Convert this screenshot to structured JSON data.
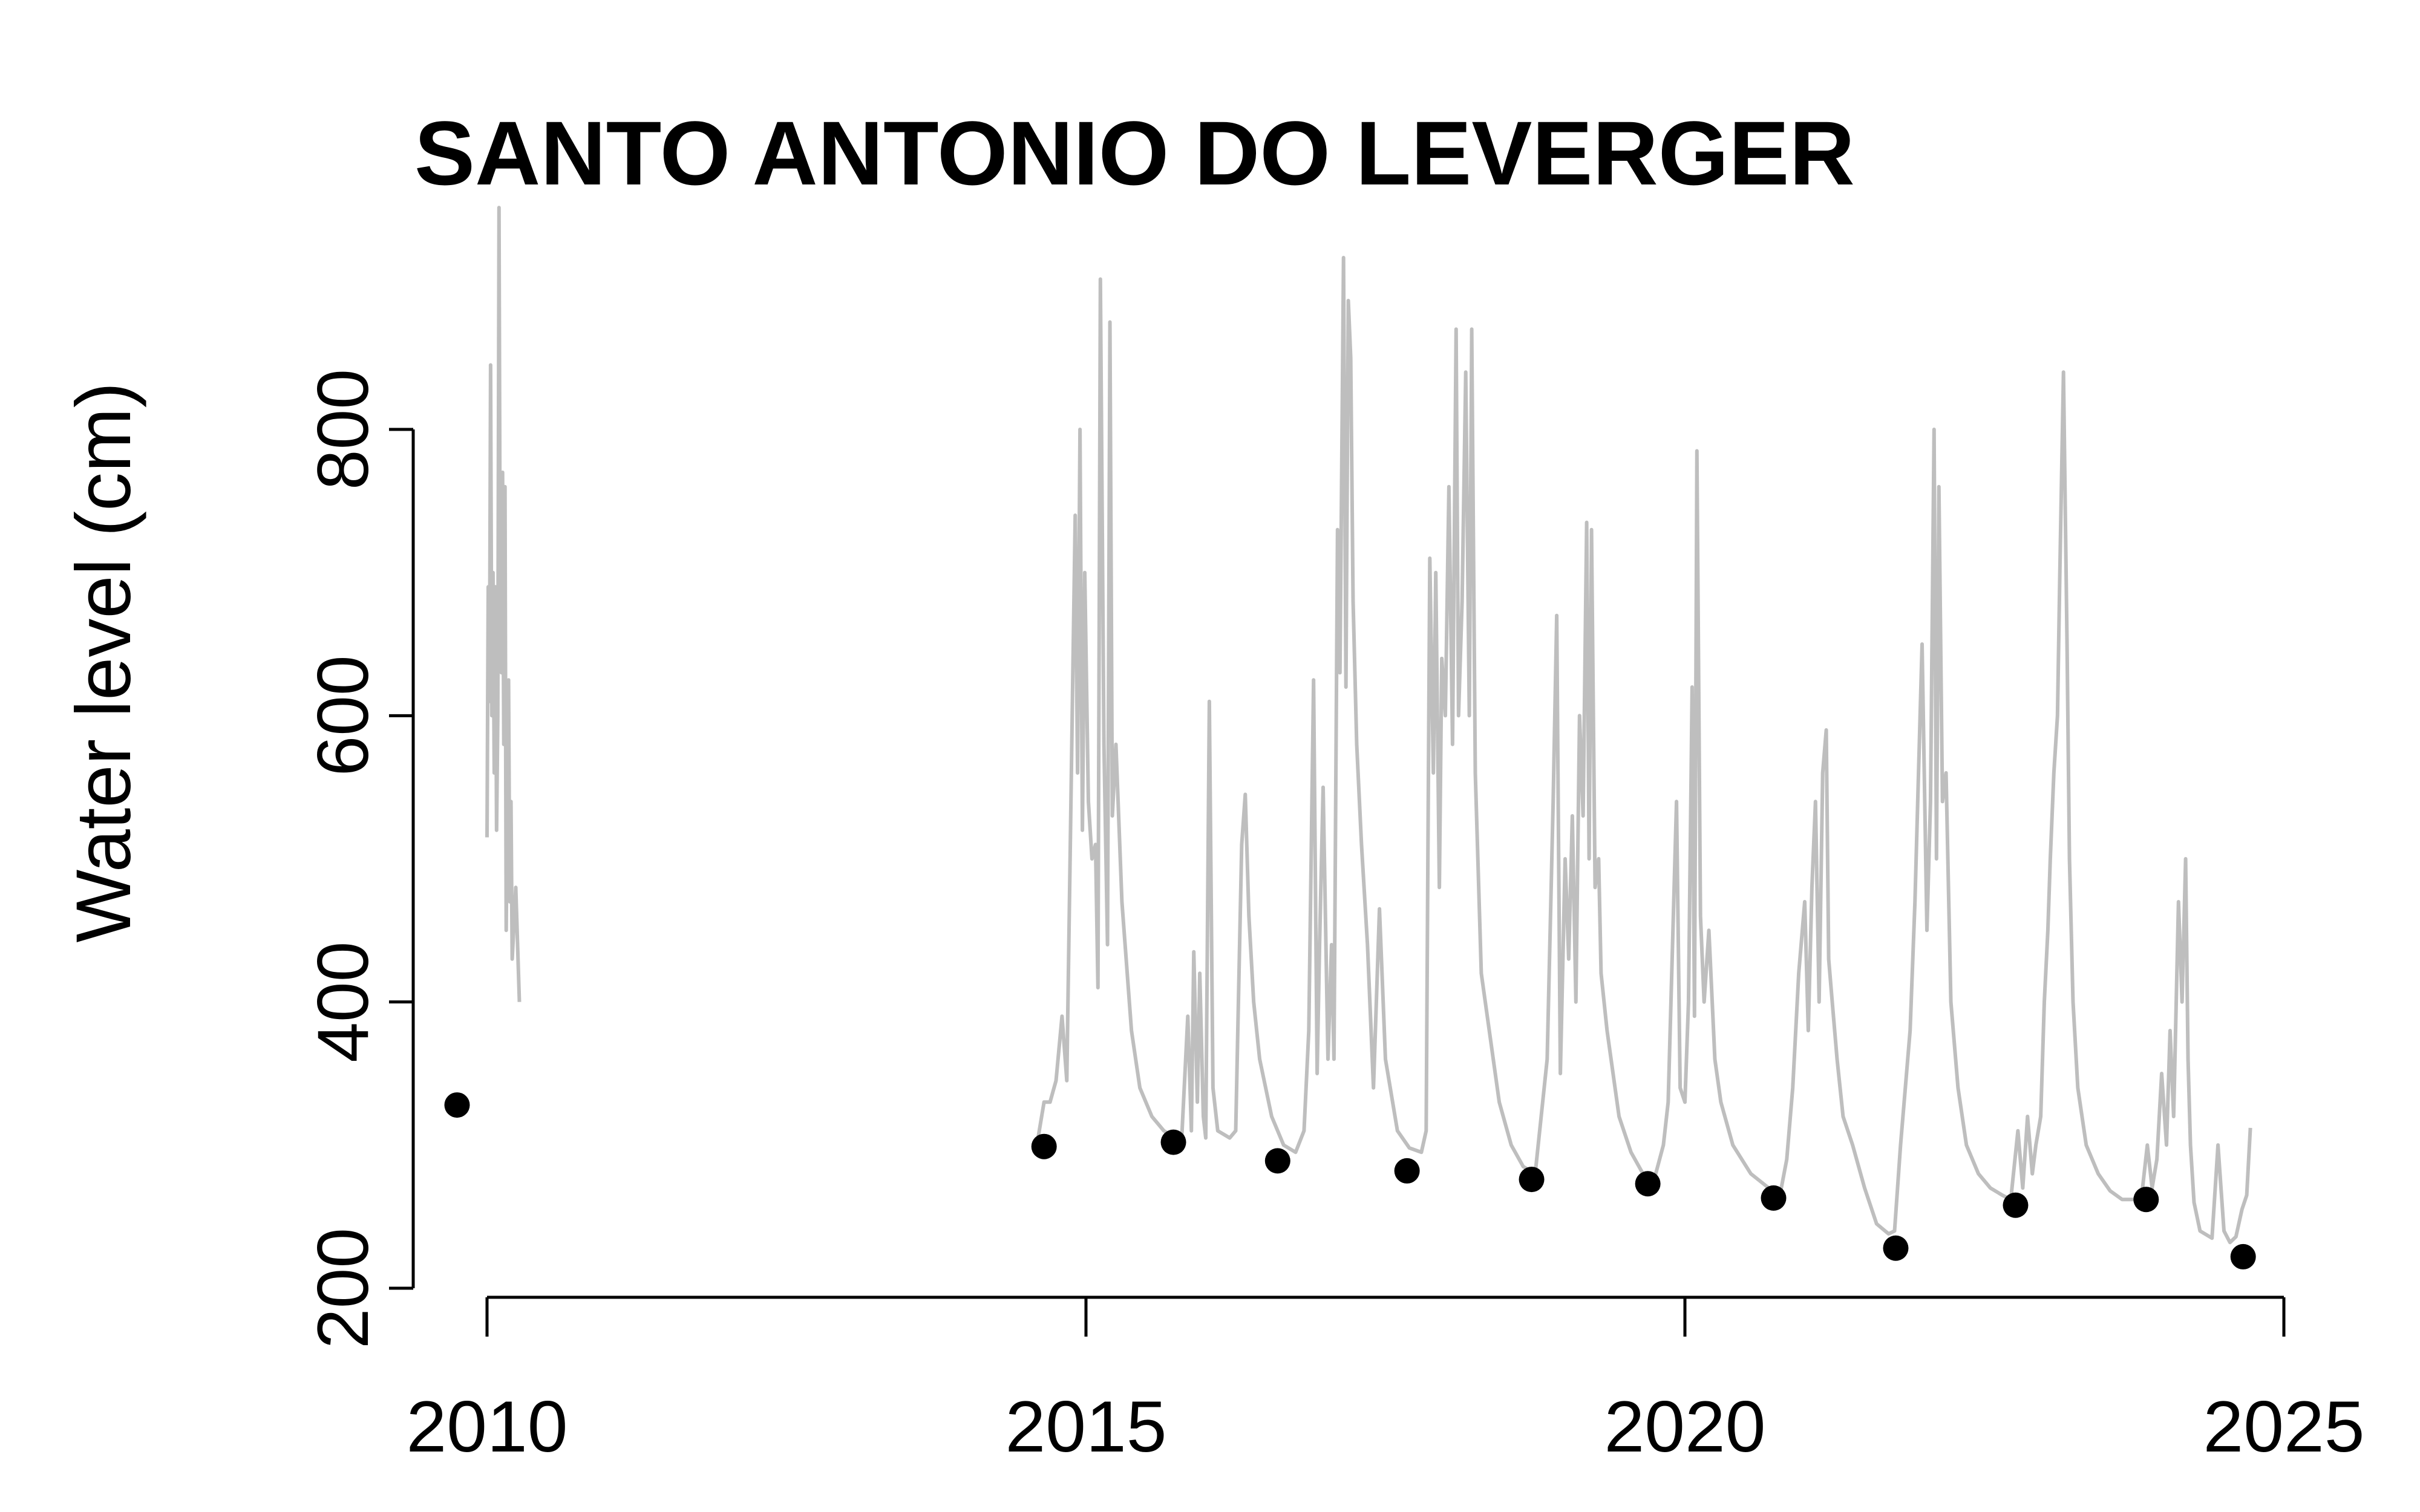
{
  "chart_data": {
    "type": "line",
    "title": "SANTO ANTONIO DO LEVERGER",
    "xlabel": "",
    "ylabel": "Water level (cm)",
    "xlim": [
      2010,
      2025
    ],
    "ylim": [
      200,
      800
    ],
    "x_ticks": [
      "2010",
      "2015",
      "2020",
      "2025"
    ],
    "y_ticks": [
      "200",
      "400",
      "600",
      "800"
    ],
    "grid": false,
    "colors": {
      "line": "#bebebe",
      "points": "#000000",
      "axis": "#000000"
    },
    "series": [
      {
        "type": "line",
        "segments": [
          [
            [
              2010.0,
              515
            ],
            [
              2010.01,
              690
            ],
            [
              2010.02,
              610
            ],
            [
              2010.03,
              845
            ],
            [
              2010.04,
              600
            ],
            [
              2010.05,
              700
            ],
            [
              2010.06,
              560
            ],
            [
              2010.07,
              690
            ],
            [
              2010.08,
              520
            ],
            [
              2010.09,
              600
            ],
            [
              2010.1,
              955
            ],
            [
              2010.11,
              680
            ],
            [
              2010.12,
              630
            ],
            [
              2010.13,
              770
            ],
            [
              2010.14,
              580
            ],
            [
              2010.15,
              760
            ],
            [
              2010.16,
              450
            ],
            [
              2010.17,
              560
            ],
            [
              2010.18,
              625
            ],
            [
              2010.19,
              470
            ],
            [
              2010.2,
              540
            ],
            [
              2010.21,
              430
            ],
            [
              2010.24,
              480
            ],
            [
              2010.27,
              400
            ]
          ],
          [
            [
              2014.6,
              305
            ],
            [
              2014.65,
              330
            ],
            [
              2014.7,
              330
            ],
            [
              2014.75,
              345
            ],
            [
              2014.8,
              390
            ],
            [
              2014.84,
              345
            ],
            [
              2014.88,
              570
            ],
            [
              2014.91,
              740
            ],
            [
              2014.93,
              560
            ],
            [
              2014.95,
              800
            ],
            [
              2014.97,
              520
            ],
            [
              2014.99,
              700
            ],
            [
              2015.02,
              540
            ],
            [
              2015.05,
              500
            ],
            [
              2015.08,
              510
            ],
            [
              2015.1,
              410
            ],
            [
              2015.12,
              905
            ],
            [
              2015.15,
              580
            ],
            [
              2015.18,
              440
            ],
            [
              2015.2,
              875
            ],
            [
              2015.22,
              530
            ],
            [
              2015.25,
              580
            ],
            [
              2015.3,
              470
            ],
            [
              2015.38,
              380
            ],
            [
              2015.45,
              340
            ],
            [
              2015.55,
              320
            ],
            [
              2015.65,
              310
            ],
            [
              2015.75,
              305
            ],
            [
              2015.8,
              306
            ],
            [
              2015.85,
              390
            ],
            [
              2015.88,
              310
            ],
            [
              2015.9,
              435
            ],
            [
              2015.93,
              330
            ],
            [
              2015.95,
              420
            ],
            [
              2015.98,
              320
            ],
            [
              2016.0,
              305
            ],
            [
              2016.03,
              610
            ],
            [
              2016.06,
              340
            ],
            [
              2016.1,
              310
            ],
            [
              2016.2,
              305
            ],
            [
              2016.25,
              310
            ],
            [
              2016.3,
              510
            ],
            [
              2016.33,
              545
            ],
            [
              2016.36,
              460
            ],
            [
              2016.4,
              400
            ],
            [
              2016.45,
              360
            ],
            [
              2016.55,
              320
            ],
            [
              2016.65,
              300
            ],
            [
              2016.75,
              295
            ],
            [
              2016.82,
              310
            ],
            [
              2016.86,
              380
            ],
            [
              2016.9,
              625
            ],
            [
              2016.93,
              350
            ],
            [
              2016.95,
              440
            ],
            [
              2016.98,
              550
            ],
            [
              2017.02,
              360
            ],
            [
              2017.05,
              440
            ],
            [
              2017.07,
              360
            ],
            [
              2017.1,
              730
            ],
            [
              2017.12,
              630
            ],
            [
              2017.15,
              920
            ],
            [
              2017.17,
              620
            ],
            [
              2017.19,
              890
            ],
            [
              2017.21,
              850
            ],
            [
              2017.23,
              680
            ],
            [
              2017.26,
              580
            ],
            [
              2017.3,
              510
            ],
            [
              2017.35,
              440
            ],
            [
              2017.4,
              340
            ],
            [
              2017.45,
              465
            ],
            [
              2017.5,
              360
            ],
            [
              2017.6,
              310
            ],
            [
              2017.7,
              298
            ],
            [
              2017.8,
              295
            ],
            [
              2017.84,
              310
            ],
            [
              2017.87,
              710
            ],
            [
              2017.9,
              560
            ],
            [
              2017.92,
              700
            ],
            [
              2017.95,
              480
            ],
            [
              2017.97,
              640
            ],
            [
              2018.0,
              600
            ],
            [
              2018.03,
              760
            ],
            [
              2018.06,
              580
            ],
            [
              2018.09,
              870
            ],
            [
              2018.11,
              600
            ],
            [
              2018.14,
              680
            ],
            [
              2018.17,
              840
            ],
            [
              2018.2,
              600
            ],
            [
              2018.22,
              870
            ],
            [
              2018.25,
              560
            ],
            [
              2018.3,
              420
            ],
            [
              2018.35,
              390
            ],
            [
              2018.45,
              330
            ],
            [
              2018.55,
              300
            ],
            [
              2018.65,
              285
            ],
            [
              2018.75,
              280
            ],
            [
              2018.8,
              320
            ],
            [
              2018.85,
              360
            ],
            [
              2018.9,
              540
            ],
            [
              2018.93,
              670
            ],
            [
              2018.96,
              350
            ],
            [
              2019.0,
              500
            ],
            [
              2019.03,
              430
            ],
            [
              2019.06,
              530
            ],
            [
              2019.09,
              400
            ],
            [
              2019.12,
              600
            ],
            [
              2019.15,
              530
            ],
            [
              2019.18,
              735
            ],
            [
              2019.2,
              500
            ],
            [
              2019.22,
              730
            ],
            [
              2019.25,
              480
            ],
            [
              2019.28,
              500
            ],
            [
              2019.3,
              420
            ],
            [
              2019.35,
              380
            ],
            [
              2019.45,
              320
            ],
            [
              2019.55,
              295
            ],
            [
              2019.65,
              280
            ],
            [
              2019.75,
              278
            ],
            [
              2019.82,
              300
            ],
            [
              2019.86,
              330
            ],
            [
              2019.9,
              450
            ],
            [
              2019.93,
              540
            ],
            [
              2019.96,
              340
            ],
            [
              2020.0,
              330
            ],
            [
              2020.03,
              400
            ],
            [
              2020.06,
              620
            ],
            [
              2020.08,
              390
            ],
            [
              2020.1,
              785
            ],
            [
              2020.13,
              460
            ],
            [
              2020.16,
              400
            ],
            [
              2020.2,
              450
            ],
            [
              2020.25,
              360
            ],
            [
              2020.3,
              330
            ],
            [
              2020.4,
              300
            ],
            [
              2020.55,
              280
            ],
            [
              2020.7,
              270
            ],
            [
              2020.8,
              268
            ],
            [
              2020.85,
              290
            ],
            [
              2020.9,
              340
            ],
            [
              2020.95,
              420
            ],
            [
              2021.0,
              470
            ],
            [
              2021.03,
              380
            ],
            [
              2021.06,
              480
            ],
            [
              2021.09,
              540
            ],
            [
              2021.12,
              400
            ],
            [
              2021.15,
              560
            ],
            [
              2021.18,
              590
            ],
            [
              2021.2,
              430
            ],
            [
              2021.23,
              400
            ],
            [
              2021.27,
              360
            ],
            [
              2021.32,
              320
            ],
            [
              2021.4,
              300
            ],
            [
              2021.5,
              270
            ],
            [
              2021.6,
              245
            ],
            [
              2021.7,
              238
            ],
            [
              2021.75,
              240
            ],
            [
              2021.8,
              300
            ],
            [
              2021.84,
              340
            ],
            [
              2021.88,
              380
            ],
            [
              2021.92,
              470
            ],
            [
              2021.95,
              560
            ],
            [
              2021.98,
              650
            ],
            [
              2022.02,
              450
            ],
            [
              2022.05,
              540
            ],
            [
              2022.08,
              800
            ],
            [
              2022.1,
              500
            ],
            [
              2022.12,
              760
            ],
            [
              2022.15,
              540
            ],
            [
              2022.18,
              560
            ],
            [
              2022.22,
              400
            ],
            [
              2022.28,
              340
            ],
            [
              2022.35,
              300
            ],
            [
              2022.45,
              280
            ],
            [
              2022.55,
              270
            ],
            [
              2022.65,
              265
            ],
            [
              2022.72,
              262
            ],
            [
              2022.78,
              310
            ],
            [
              2022.82,
              270
            ],
            [
              2022.86,
              320
            ],
            [
              2022.9,
              280
            ],
            [
              2022.93,
              300
            ],
            [
              2022.97,
              320
            ],
            [
              2023.0,
              400
            ],
            [
              2023.03,
              450
            ],
            [
              2023.05,
              500
            ],
            [
              2023.08,
              560
            ],
            [
              2023.11,
              600
            ],
            [
              2023.13,
              700
            ],
            [
              2023.16,
              840
            ],
            [
              2023.19,
              650
            ],
            [
              2023.21,
              500
            ],
            [
              2023.24,
              400
            ],
            [
              2023.28,
              340
            ],
            [
              2023.35,
              300
            ],
            [
              2023.45,
              280
            ],
            [
              2023.55,
              268
            ],
            [
              2023.65,
              262
            ],
            [
              2023.75,
              262
            ],
            [
              2023.82,
              270
            ],
            [
              2023.86,
              300
            ],
            [
              2023.9,
              270
            ],
            [
              2023.94,
              290
            ],
            [
              2023.98,
              350
            ],
            [
              2024.02,
              300
            ],
            [
              2024.05,
              380
            ],
            [
              2024.08,
              320
            ],
            [
              2024.12,
              470
            ],
            [
              2024.15,
              400
            ],
            [
              2024.18,
              500
            ],
            [
              2024.2,
              360
            ],
            [
              2024.22,
              300
            ],
            [
              2024.25,
              260
            ],
            [
              2024.3,
              240
            ],
            [
              2024.4,
              235
            ],
            [
              2024.45,
              300
            ],
            [
              2024.5,
              240
            ],
            [
              2024.55,
              232
            ],
            [
              2024.6,
              236
            ],
            [
              2024.65,
              255
            ],
            [
              2024.69,
              265
            ],
            [
              2024.72,
              312
            ]
          ]
        ]
      },
      {
        "type": "scatter",
        "points": [
          [
            2009.75,
            328
          ],
          [
            2014.65,
            299
          ],
          [
            2015.73,
            302
          ],
          [
            2016.6,
            289
          ],
          [
            2017.68,
            282
          ],
          [
            2018.72,
            276
          ],
          [
            2019.69,
            273
          ],
          [
            2020.74,
            263
          ],
          [
            2021.76,
            228
          ],
          [
            2022.76,
            258
          ],
          [
            2023.85,
            262
          ],
          [
            2024.66,
            222
          ]
        ]
      }
    ]
  }
}
